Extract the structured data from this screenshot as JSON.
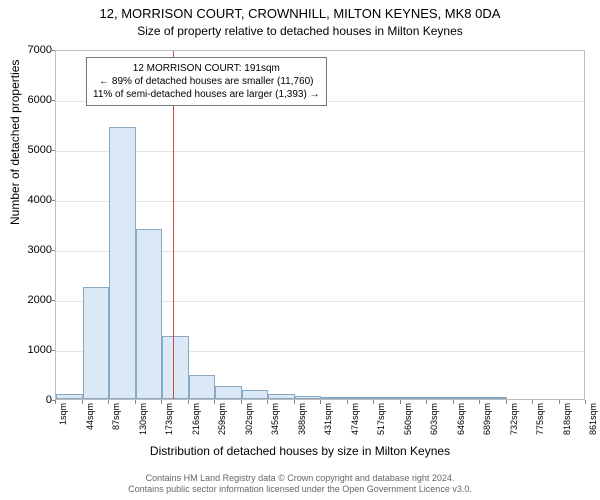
{
  "title": "12, MORRISON COURT, CROWNHILL, MILTON KEYNES, MK8 0DA",
  "subtitle": "Size of property relative to detached houses in Milton Keynes",
  "chart": {
    "type": "histogram",
    "ylabel": "Number of detached properties",
    "xlabel": "Distribution of detached houses by size in Milton Keynes",
    "ylim": [
      0,
      7000
    ],
    "ytick_step": 1000,
    "background_color": "#ffffff",
    "grid_color": "#e5e5e5",
    "border_color": "#bdbdbd",
    "bar_fill": "#dbe9f6",
    "bar_border": "#8aa8c4",
    "marker_color": "#d94545",
    "marker_x_position": 191,
    "xtick_start": 1,
    "xtick_step": 43,
    "xtick_count": 21,
    "xtick_unit": "sqm",
    "bar_bin_width": 43,
    "values": [
      100,
      2250,
      5440,
      3400,
      1270,
      480,
      260,
      180,
      100,
      60,
      25,
      10,
      5,
      2,
      2,
      1,
      1,
      0,
      0,
      0,
      0
    ]
  },
  "annotation": {
    "line1": "12 MORRISON COURT: 191sqm",
    "line2": "← 89% of detached houses are smaller (11,760)",
    "line3": "11% of semi-detached houses are larger (1,393) →"
  },
  "footer": {
    "line1": "Contains HM Land Registry data © Crown copyright and database right 2024.",
    "line2": "Contains public sector information licensed under the Open Government Licence v3.0."
  }
}
